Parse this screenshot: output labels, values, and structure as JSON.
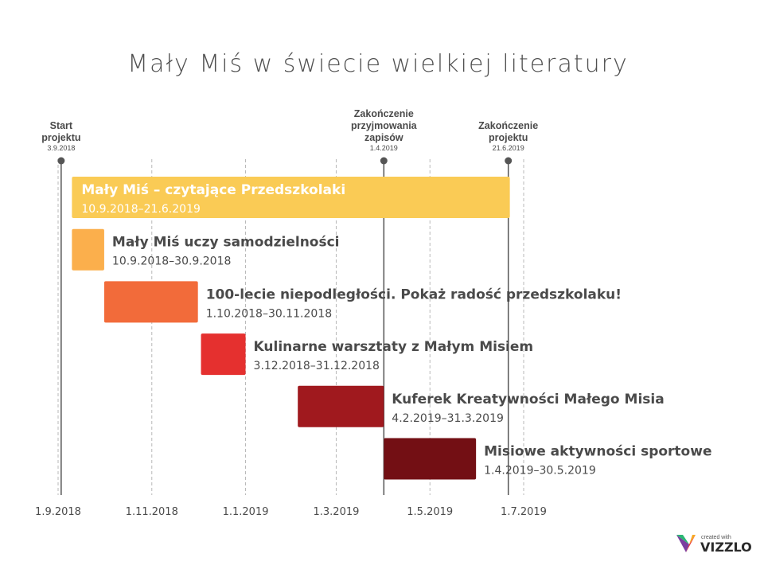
{
  "chart_data": {
    "type": "gantt",
    "title": "Mały Miś w świecie wielkiej literatury",
    "x_axis": {
      "min": "2018-09-01",
      "max": "2019-07-01",
      "ticks": [
        {
          "date": "2018-09-01",
          "label": "1.9.2018"
        },
        {
          "date": "2018-11-01",
          "label": "1.11.2018"
        },
        {
          "date": "2019-01-01",
          "label": "1.1.2019"
        },
        {
          "date": "2019-03-01",
          "label": "1.3.2019"
        },
        {
          "date": "2019-05-01",
          "label": "1.5.2019"
        },
        {
          "date": "2019-07-01",
          "label": "1.7.2019"
        }
      ],
      "grid": true
    },
    "milestones": [
      {
        "date": "2018-09-03",
        "label_lines": [
          "Start",
          "projektu"
        ],
        "date_label": "3.9.2018"
      },
      {
        "date": "2019-04-01",
        "label_lines": [
          "Zakończenie",
          "przyjmowania",
          "zapisów"
        ],
        "date_label": "1.4.2019"
      },
      {
        "date": "2019-06-21",
        "label_lines": [
          "Zakończenie",
          "projektu"
        ],
        "date_label": "21.6.2019"
      }
    ],
    "tasks": [
      {
        "name": "Mały Miś – czytające Przedszkolaki",
        "range_label": "10.9.2018–21.6.2019",
        "start": "2018-09-10",
        "end": "2019-06-21",
        "color": "#FACB55",
        "label_inside": true
      },
      {
        "name": "Mały Miś uczy samodzielności",
        "range_label": "10.9.2018–30.9.2018",
        "start": "2018-09-10",
        "end": "2018-09-30",
        "color": "#FBAF4C",
        "label_inside": false
      },
      {
        "name": "100-lecie niepodległości. Pokaż radość  przedszkolaku!",
        "range_label": "1.10.2018–30.11.2018",
        "start": "2018-10-01",
        "end": "2018-11-30",
        "color": "#F26B3A",
        "label_inside": false
      },
      {
        "name": "Kulinarne warsztaty z Małym Misiem",
        "range_label": "3.12.2018–31.12.2018",
        "start": "2018-12-03",
        "end": "2018-12-31",
        "color": "#E5302F",
        "label_inside": false
      },
      {
        "name": "Kuferek Kreatywności Małego Misia",
        "range_label": "4.2.2019–31.3.2019",
        "start": "2019-02-04",
        "end": "2019-03-31",
        "color": "#A0191E",
        "label_inside": false
      },
      {
        "name": "Misiowe aktywności sportowe",
        "range_label": "1.4.2019–30.5.2019",
        "start": "2019-04-01",
        "end": "2019-05-30",
        "color": "#730F14",
        "label_inside": false
      }
    ]
  },
  "branding": {
    "created_with": "created with",
    "name": "VIZZLO"
  },
  "colors": {
    "text_dark": "#4a4a4a",
    "grid": "#b8b8b8",
    "milestone_line": "#555555"
  }
}
